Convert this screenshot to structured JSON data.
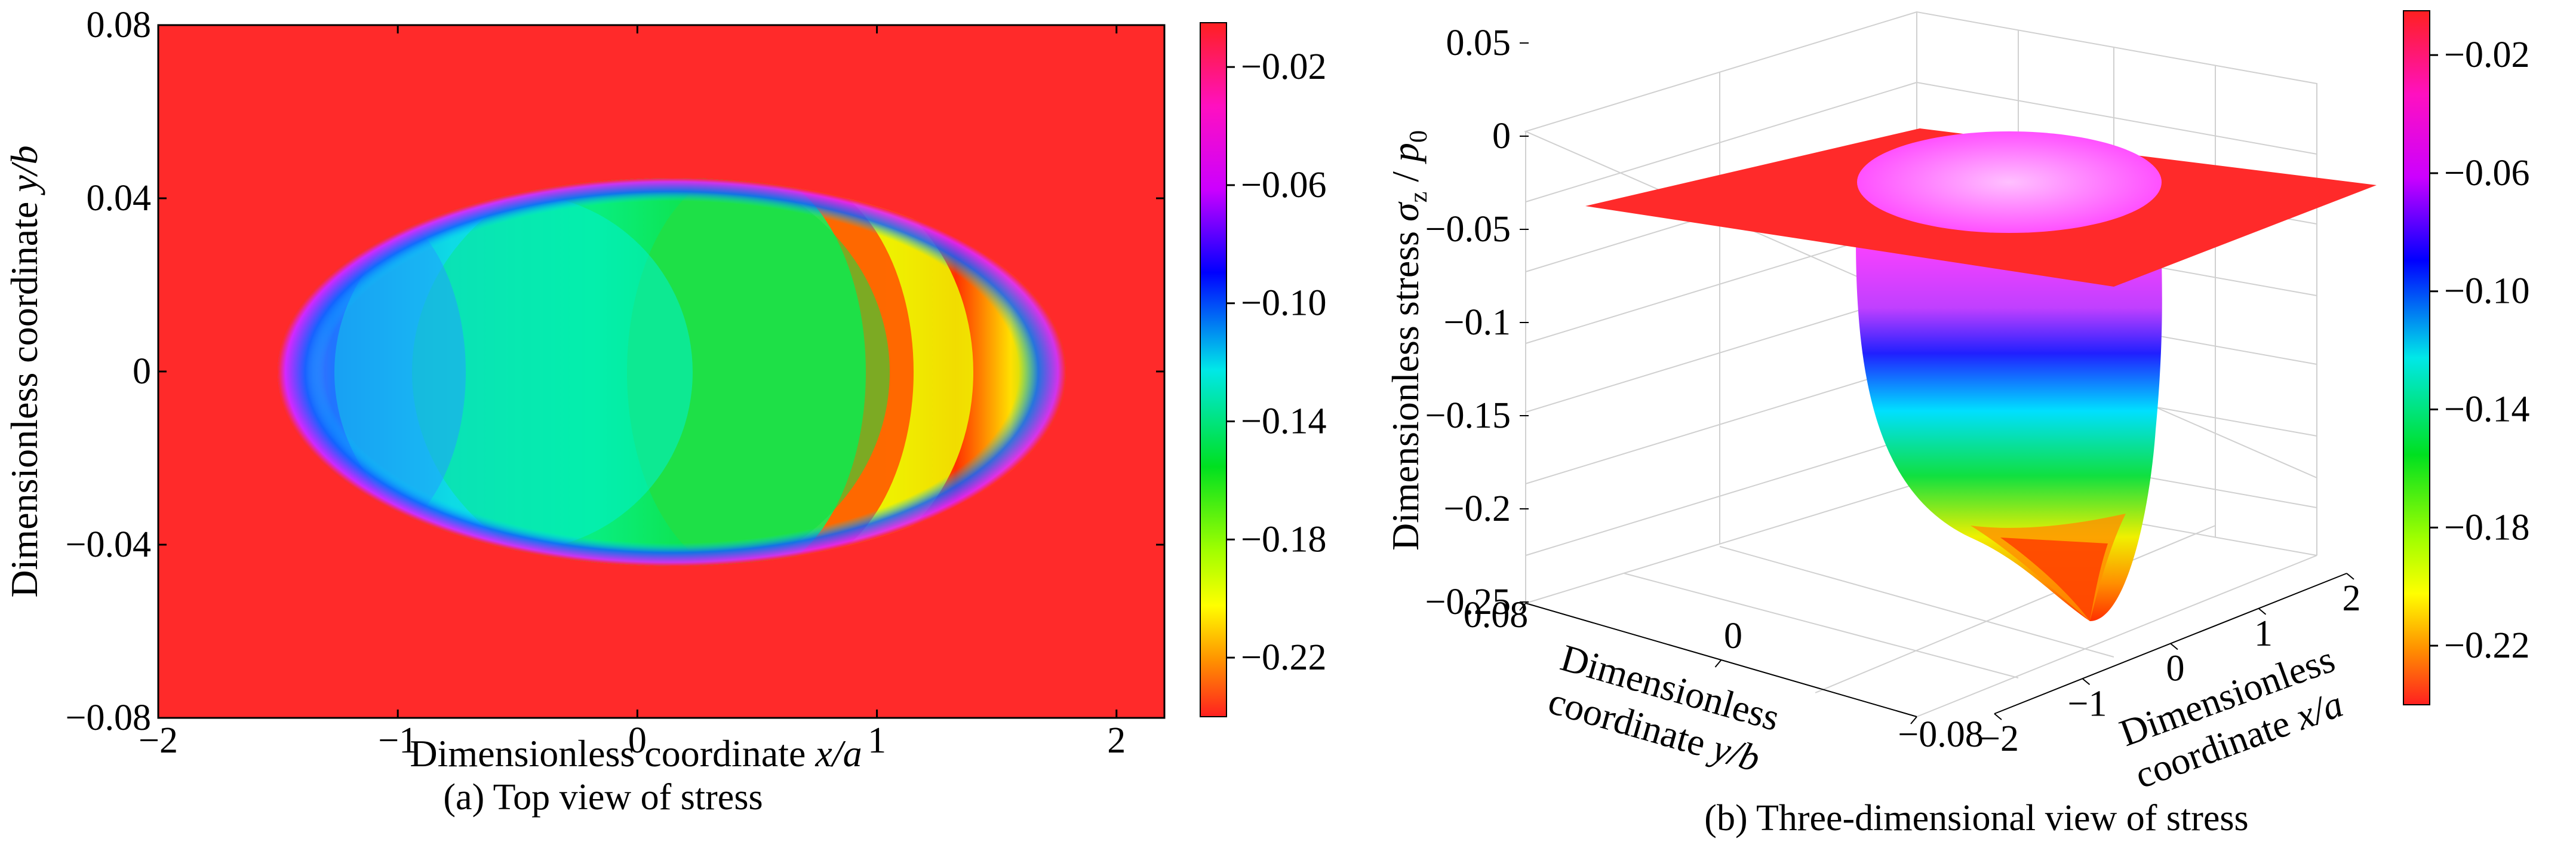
{
  "colors": {
    "stops": [
      "#ff2020",
      "#ff9000",
      "#ffff00",
      "#00e020",
      "#00e8e8",
      "#0000ff",
      "#ff00ff",
      "#ff2020"
    ],
    "background_field": "#ff2a2a"
  },
  "chart_data": [
    {
      "type": "heatmap",
      "panel": "a",
      "caption": "(a)  Top view of stress",
      "xlabel_prefix": "Dimensionless coordinate ",
      "xlabel_var": "x/a",
      "ylabel_prefix": "Dimensionless coordinate ",
      "ylabel_var": "y/b",
      "xlim": [
        -2,
        2.2
      ],
      "ylim": [
        -0.08,
        0.08
      ],
      "xticks": [
        -2,
        -1,
        0,
        1,
        2
      ],
      "xtick_labels": [
        "−2",
        "−1",
        "0",
        "1",
        "2"
      ],
      "yticks": [
        -0.08,
        -0.04,
        0,
        0.04,
        0.08
      ],
      "ytick_labels": [
        "−0.08",
        "−0.04",
        "0",
        "0.04",
        "0.08"
      ],
      "contact_ellipse": {
        "x_center": 0.2,
        "x_semi_axis": 1.4,
        "y_semi_axis": 0.039
      },
      "colorbar": {
        "range": [
          -0.24,
          -0.005
        ],
        "ticks": [
          -0.02,
          -0.06,
          -0.1,
          -0.14,
          -0.18,
          -0.22
        ],
        "tick_labels": [
          "−0.02",
          "−0.06",
          "−0.10",
          "−0.14",
          "−0.18",
          "−0.22"
        ]
      }
    },
    {
      "type": "surface3d",
      "panel": "b",
      "caption": "(b)  Three-dimensional view of stress",
      "zlabel_prefix": "Dimensionless stress  ",
      "zlabel_var": "σ",
      "zlabel_sub": "z",
      "zlabel_den": "p",
      "zlabel_den_sub": "0",
      "zlim": [
        -0.25,
        0.05
      ],
      "zticks": [
        0.05,
        0,
        -0.05,
        -0.1,
        -0.15,
        -0.2,
        -0.25
      ],
      "ztick_labels": [
        "0.05",
        "0",
        "−0.05",
        "−0.1",
        "−0.15",
        "−0.2",
        "−0.25"
      ],
      "ylabel_line1": "Dimensionless",
      "ylabel_line2_prefix": "coordinate ",
      "ylabel_var": "y/b",
      "yticks": [
        0.08,
        0,
        -0.08
      ],
      "ytick_labels": [
        "0.08",
        "0",
        "−0.08"
      ],
      "xlabel_line1": "Dimensionless",
      "xlabel_line2_prefix": "coordinate ",
      "xlabel_var": "x/a",
      "xticks": [
        -2,
        -1,
        0,
        1,
        2
      ],
      "xtick_labels": [
        "−2",
        "−1",
        "0",
        "1",
        "2"
      ],
      "min_stress": -0.23,
      "colorbar": {
        "range": [
          -0.24,
          -0.005
        ],
        "ticks": [
          -0.02,
          -0.06,
          -0.1,
          -0.14,
          -0.18,
          -0.22
        ],
        "tick_labels": [
          "−0.02",
          "−0.06",
          "−0.10",
          "−0.14",
          "−0.18",
          "−0.22"
        ]
      }
    }
  ]
}
